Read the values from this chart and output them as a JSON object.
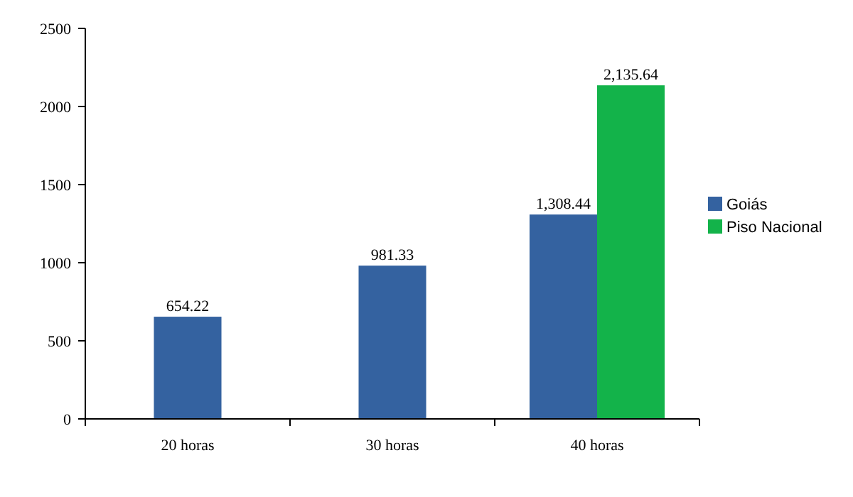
{
  "chart_data": {
    "type": "bar",
    "categories": [
      "20 horas",
      "30 horas",
      "40 horas"
    ],
    "series": [
      {
        "name": "Goiás",
        "color": "#3462a0",
        "values": [
          654.22,
          981.33,
          1308.44
        ],
        "value_labels": [
          "654.22",
          "981.33",
          "1,308.44"
        ]
      },
      {
        "name": "Piso Nacional",
        "color": "#13b34a",
        "values": [
          null,
          null,
          2135.64
        ],
        "value_labels": [
          null,
          null,
          "2,135.64"
        ]
      }
    ],
    "ylim": [
      0,
      2500
    ],
    "yticks": [
      0,
      500,
      1000,
      1500,
      2000,
      2500
    ],
    "grid": false,
    "legend": "right"
  }
}
